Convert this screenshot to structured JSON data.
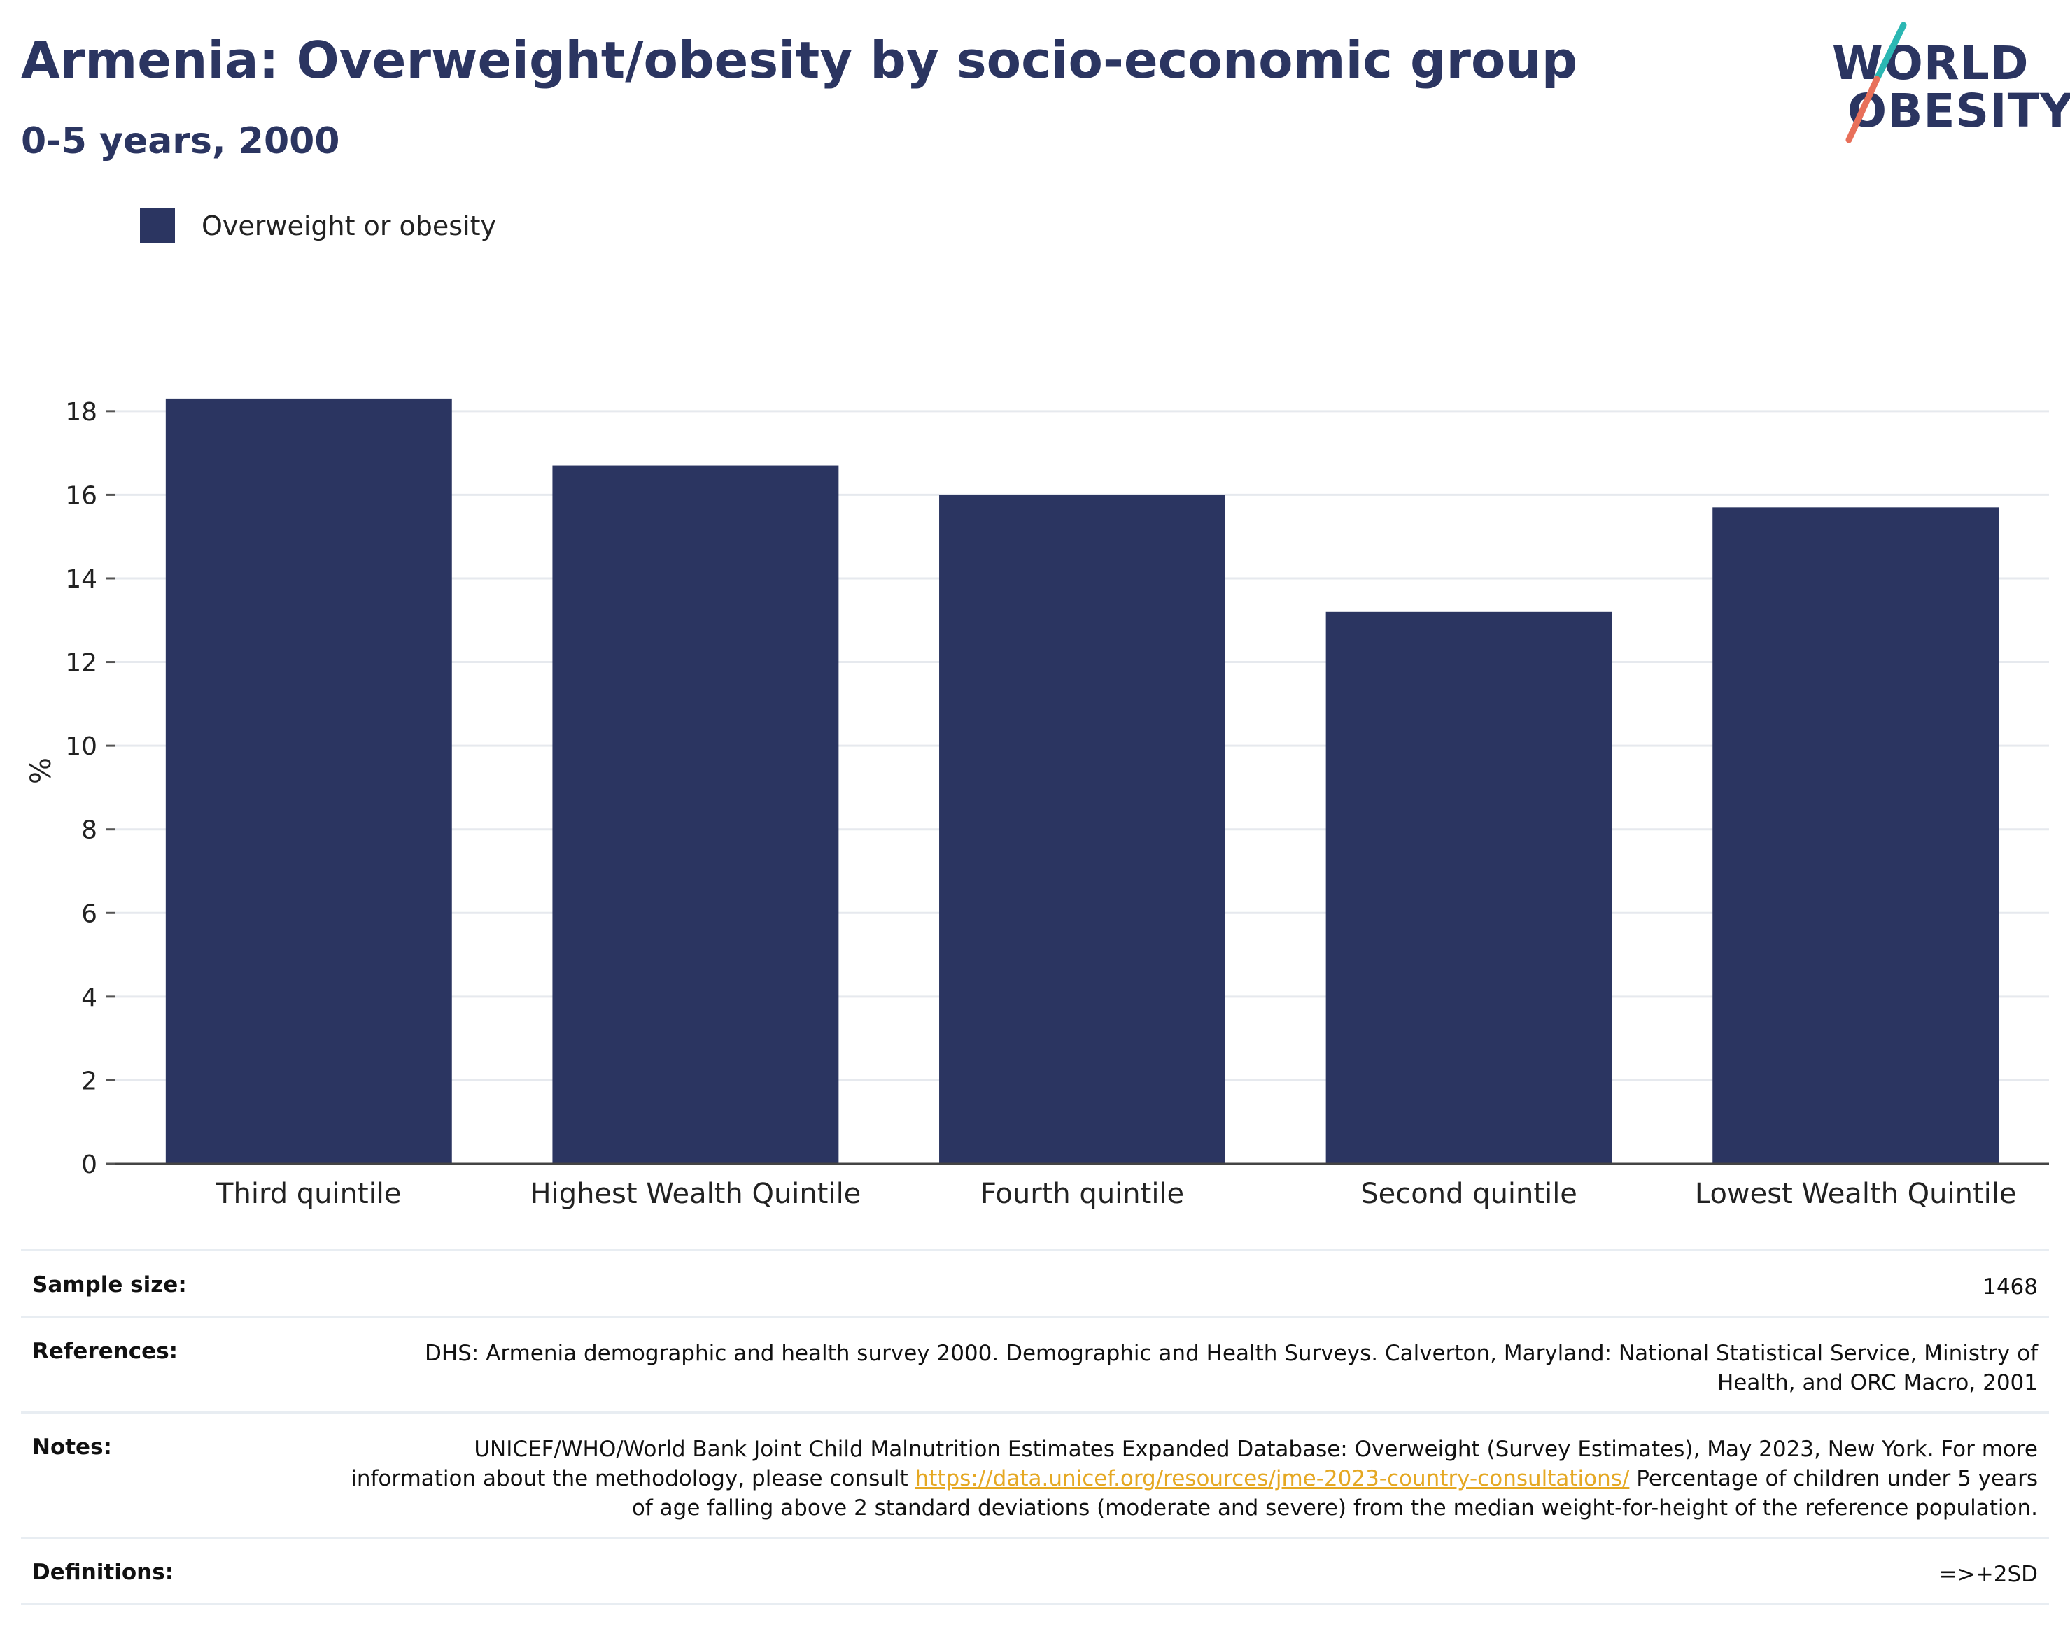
{
  "title": "Armenia: Overweight/obesity by socio-economic group",
  "subtitle": "0-5 years, 2000",
  "logo": {
    "line1": "WORLD",
    "line2": "OBESITY",
    "colors": {
      "text": "#2b3561",
      "slash_top": "#2bb7b3",
      "slash_bottom": "#e8705a"
    }
  },
  "legend": {
    "label": "Overweight or obesity",
    "color": "#2b3561"
  },
  "chart_data": {
    "type": "bar",
    "categories": [
      "Third quintile",
      "Highest Wealth Quintile",
      "Fourth quintile",
      "Second quintile",
      "Lowest Wealth Quintile"
    ],
    "series": [
      {
        "name": "Overweight or obesity",
        "values": [
          18.3,
          16.7,
          16.0,
          13.2,
          15.7
        ],
        "color": "#2b3561"
      }
    ],
    "ylabel": "%",
    "ylim": [
      0,
      18.8
    ],
    "yticks": [
      0,
      2,
      4,
      6,
      8,
      10,
      12,
      14,
      16,
      18
    ],
    "grid": true,
    "legend_position": "top-left"
  },
  "info": {
    "sample_size": {
      "label": "Sample size:",
      "value": "1468"
    },
    "references": {
      "label": "References:",
      "value": "DHS: Armenia demographic and health survey 2000. Demographic and Health Surveys. Calverton, Maryland: National Statistical Service, Ministry of Health, and ORC Macro, 2001"
    },
    "notes": {
      "label": "Notes:",
      "text_before": "UNICEF/WHO/World Bank Joint Child Malnutrition Estimates Expanded Database: Overweight (Survey Estimates), May 2023, New York. For more information about the methodology, please consult ",
      "link": "https://data.unicef.org/resources/jme-2023-country-consultations/",
      "text_after": " Percentage of children under 5 years of age falling above 2 standard deviations (moderate and severe) from the median weight-for-height of the reference population."
    },
    "definitions": {
      "label": "Definitions:",
      "value": "=>+2SD"
    }
  }
}
